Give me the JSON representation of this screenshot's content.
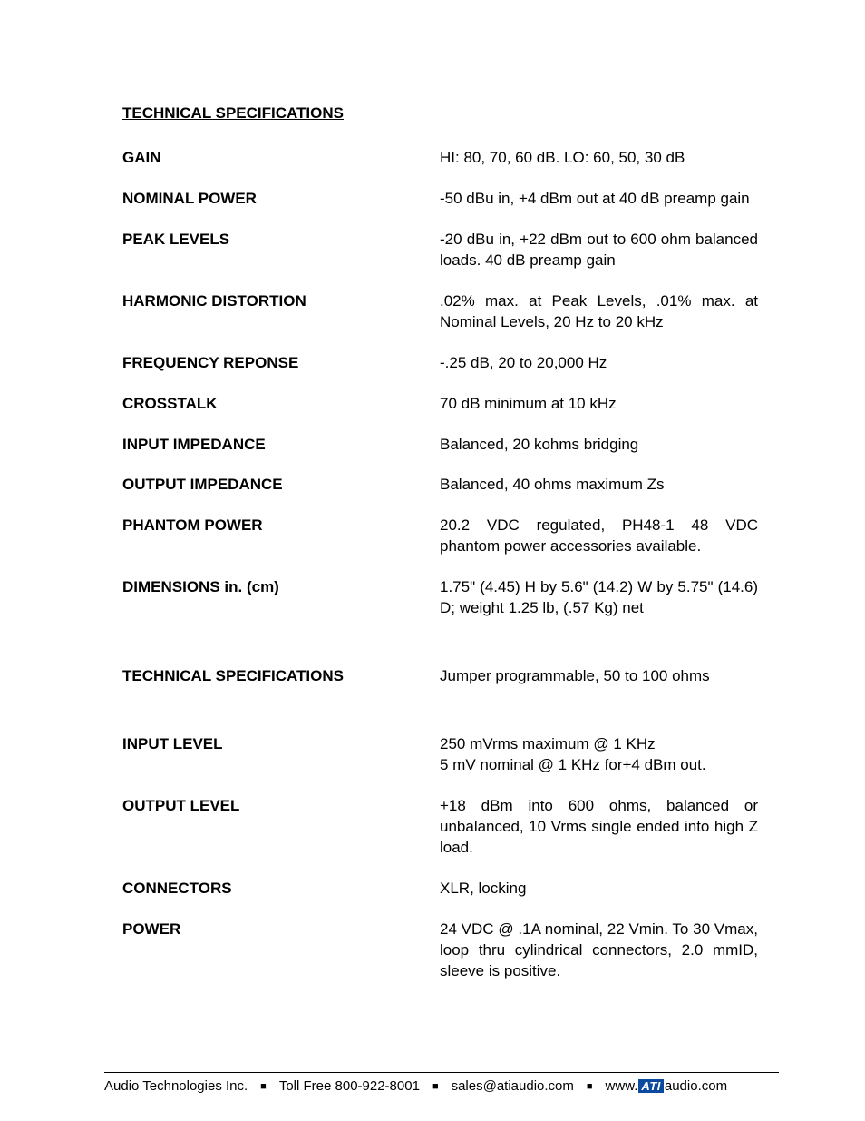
{
  "title": "TECHNICAL SPECIFICATIONS",
  "specs": [
    {
      "label": "GAIN",
      "value": "HI: 80, 70, 60 dB.  LO:  60, 50, 30 dB",
      "gap": "normal"
    },
    {
      "label": "NOMINAL POWER",
      "value": "-50 dBu in, +4 dBm out at 40 dB preamp gain",
      "gap": "normal"
    },
    {
      "label": "PEAK LEVELS",
      "value": "-20 dBu in, +22 dBm out to 600 ohm balanced loads.  40 dB preamp gain",
      "gap": "normal"
    },
    {
      "label": "HARMONIC DISTORTION",
      "value": ".02% max. at Peak Levels, .01% max. at Nominal Levels, 20 Hz to 20 kHz",
      "gap": "normal"
    },
    {
      "label": "FREQUENCY REPONSE",
      "value": "-.25 dB, 20 to 20,000 Hz",
      "gap": "normal"
    },
    {
      "label": "CROSSTALK",
      "value": "70 dB minimum at 10 kHz",
      "gap": "normal"
    },
    {
      "label": "INPUT IMPEDANCE",
      "value": "Balanced, 20 kohms bridging",
      "gap": "normal"
    },
    {
      "label": "OUTPUT IMPEDANCE",
      "value": "Balanced, 40 ohms maximum Zs",
      "gap": "normal"
    },
    {
      "label": "PHANTOM POWER",
      "value": "20.2 VDC regulated, PH48-1 48 VDC phantom power accessories available.",
      "gap": "normal"
    },
    {
      "label": "DIMENSIONS in. (cm)",
      "value": "1.75\" (4.45) H by 5.6\" (14.2) W by 5.75\" (14.6) D; weight 1.25 lb, (.57 Kg) net",
      "gap": "wide"
    },
    {
      "label": "TECHNICAL SPECIFICATIONS",
      "value": "Jumper programmable, 50 to 100 ohms",
      "gap": "wide"
    },
    {
      "label": "INPUT LEVEL",
      "value": "250 mVrms maximum @ 1 KHz\n5 mV nominal @ 1 KHz for+4 dBm out.",
      "gap": "normal"
    },
    {
      "label": "OUTPUT LEVEL",
      "value": "+18 dBm into 600 ohms, balanced or unbalanced, 10 Vrms single ended into high Z load.",
      "gap": "normal"
    },
    {
      "label": "CONNECTORS",
      "value": "XLR, locking",
      "gap": "normal"
    },
    {
      "label": "POWER",
      "value": "24 VDC @ .1A nominal, 22 Vmin. To 30 Vmax, loop thru cylindrical connectors, 2.0 mmID, sleeve is positive.",
      "gap": "normal"
    }
  ],
  "footer": {
    "company": "Audio Technologies Inc.",
    "phone_label": "Toll Free 800-922-8001",
    "email": "sales@atiaudio.com",
    "url_prefix": "www.",
    "logo_text": "ATI",
    "url_suffix": "audio.com"
  }
}
